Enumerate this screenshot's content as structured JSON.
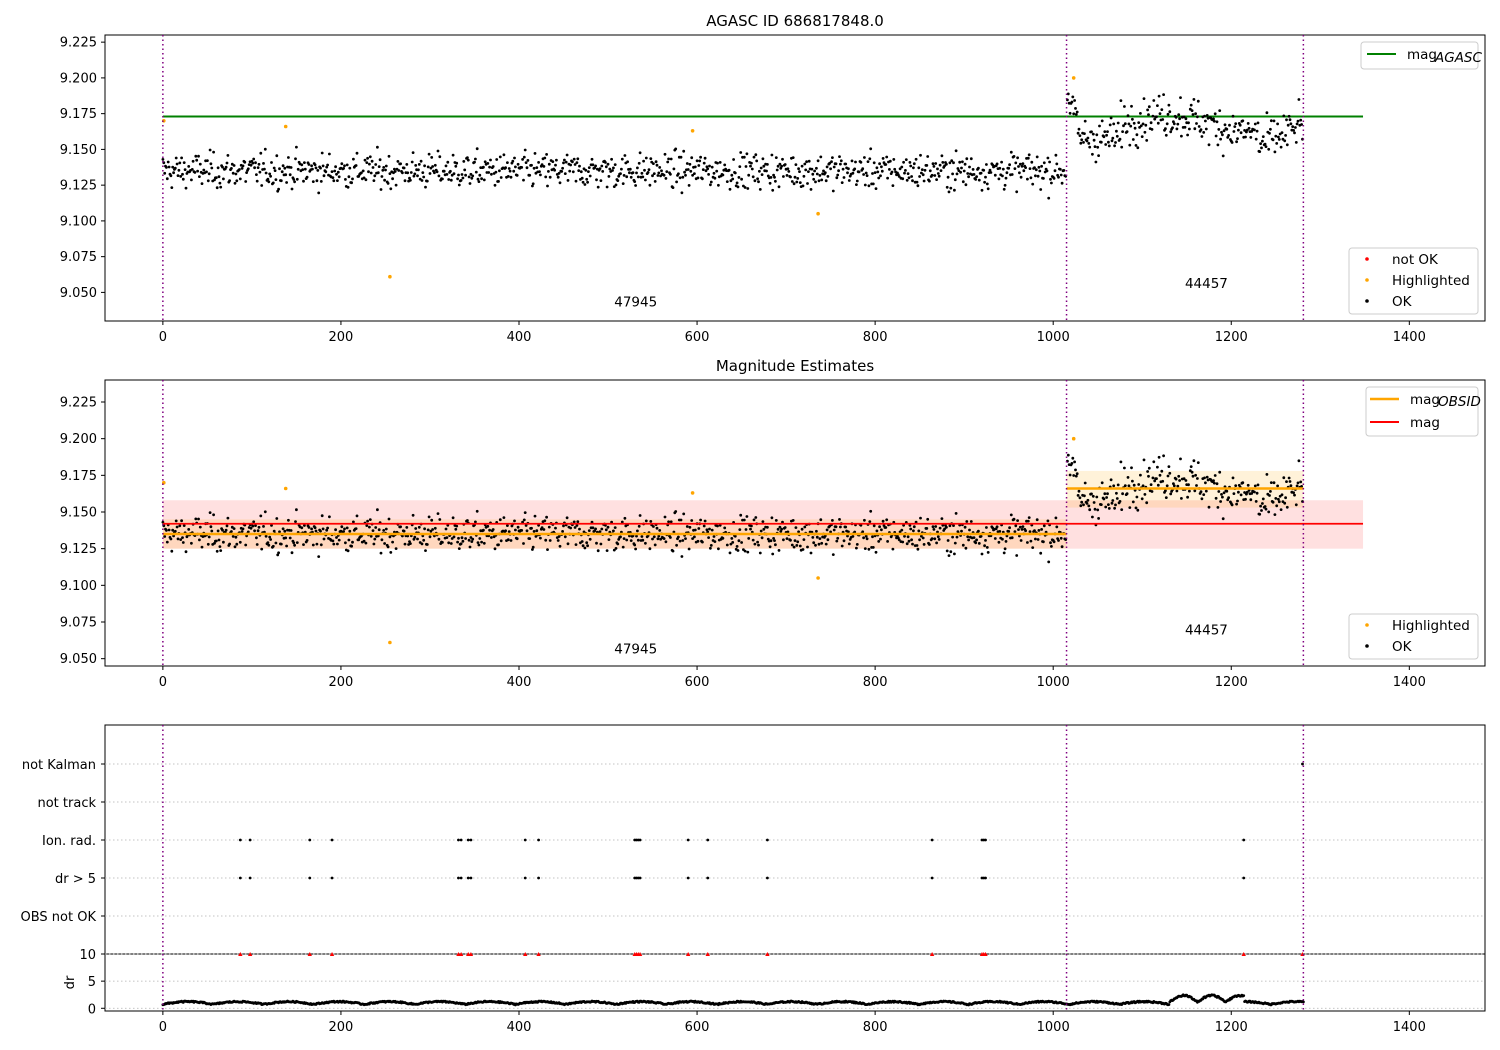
{
  "colors": {
    "ok": "#000000",
    "highlighted": "#ffa500",
    "not_ok": "#ff0000",
    "mag_agasc": "#008000",
    "mag_obsid": "#ffa500",
    "mag": "#ff0000",
    "obsid_sep": "#800080",
    "grid": "#b0b0b0"
  },
  "chart_data": [
    {
      "type": "scatter",
      "title": "AGASC ID 686817848.0",
      "xlim": [
        -65,
        1485
      ],
      "ylim": [
        9.03,
        9.23
      ],
      "xticks": [
        "0",
        "200",
        "400",
        "600",
        "800",
        "1000",
        "1200",
        "1400"
      ],
      "yticks": [
        "9.050",
        "9.075",
        "9.100",
        "9.125",
        "9.150",
        "9.175",
        "9.200",
        "9.225"
      ],
      "obsid_boundaries": [
        0,
        1015,
        1281
      ],
      "obsid_labels": [
        {
          "text": "47945",
          "x": 507,
          "y": 9.04
        },
        {
          "text": "44457",
          "x": 1148,
          "y": 9.053
        }
      ],
      "mag_agasc": {
        "value": 9.173,
        "x_range": [
          0,
          1348
        ]
      },
      "segments": [
        {
          "x_range": [
            0,
            1014
          ],
          "mean": 9.135,
          "std": 0.01
        },
        {
          "x_range": [
            1016,
            1280
          ],
          "mean": 9.166,
          "std": 0.012
        }
      ],
      "highlighted": [
        [
          1,
          9.17
        ],
        [
          138,
          9.166
        ],
        [
          255,
          9.061
        ],
        [
          595,
          9.163
        ],
        [
          736,
          9.105
        ],
        [
          1023,
          9.2
        ]
      ],
      "legend_top": [
        "mag_AGASC"
      ],
      "legend_bottom": [
        "not OK",
        "Highlighted",
        "OK"
      ],
      "legend_top_placement": "top-right",
      "legend_bottom_placement": "bottom-right",
      "grid": false
    },
    {
      "type": "scatter",
      "title": "Magnitude Estimates",
      "xlim": [
        -65,
        1485
      ],
      "ylim": [
        9.045,
        9.24
      ],
      "xticks": [
        "0",
        "200",
        "400",
        "600",
        "800",
        "1000",
        "1200",
        "1400"
      ],
      "yticks": [
        "9.050",
        "9.075",
        "9.100",
        "9.125",
        "9.150",
        "9.175",
        "9.200",
        "9.225"
      ],
      "obsid_boundaries": [
        0,
        1015,
        1281
      ],
      "obsid_labels": [
        {
          "text": "47945",
          "x": 507,
          "y": 9.0535
        },
        {
          "text": "44457",
          "x": 1148,
          "y": 9.0665
        }
      ],
      "mag_obsid": [
        {
          "value": 9.135,
          "x_range": [
            0,
            1015
          ],
          "band": [
            9.125,
            9.145
          ]
        },
        {
          "value": 9.166,
          "x_range": [
            1015,
            1281
          ],
          "band": [
            9.153,
            9.178
          ]
        }
      ],
      "mag": {
        "value": 9.142,
        "x_range": [
          0,
          1348
        ],
        "band": [
          9.125,
          9.158
        ]
      },
      "legend_top": [
        "mag_OBSID",
        "mag"
      ],
      "legend_bottom": [
        "Highlighted",
        "OK"
      ],
      "legend_top_placement": "top-right",
      "legend_bottom_placement": "bottom-right",
      "grid": false
    },
    {
      "type": "scatter",
      "xlim": [
        -65,
        1485
      ],
      "categories": [
        "OBS not OK",
        "dr > 5",
        "Ion. rad.",
        "not track",
        "not Kalman"
      ],
      "flag_x": [
        87,
        98,
        165,
        190,
        332,
        335,
        343,
        346,
        407,
        422,
        530,
        532,
        534,
        536,
        590,
        612,
        679,
        864,
        920,
        922,
        924,
        1214
      ],
      "not_kalman_x": [
        1280
      ],
      "dr_flagged_x": [
        87,
        98,
        165,
        190,
        332,
        335,
        343,
        346,
        407,
        422,
        530,
        532,
        534,
        536,
        590,
        612,
        679,
        864,
        920,
        922,
        924,
        1214,
        1280
      ],
      "grid": true
    },
    {
      "type": "line",
      "xlim": [
        -65,
        1485
      ],
      "ylim": [
        -0.5,
        10
      ],
      "ylabel": "dr",
      "yticks": [
        "0",
        "5",
        "10"
      ],
      "xticks": [
        "0",
        "200",
        "400",
        "600",
        "800",
        "1000",
        "1200",
        "1400"
      ],
      "dr_clip": 10,
      "grid": true
    }
  ],
  "legend_labels": {
    "mag_agasc_base": "mag",
    "mag_agasc_sub": "AGASC",
    "mag_obsid_base": "mag",
    "mag_obsid_sub": "OBSID",
    "mag": "mag",
    "not_ok": "not OK",
    "highlighted": "Highlighted",
    "ok": "OK"
  },
  "flag_labels": [
    "not Kalman",
    "not track",
    "Ion. rad.",
    "dr > 5",
    "OBS not OK"
  ],
  "dr_ticks": [
    "10",
    "5",
    "0"
  ],
  "dr_label": "dr"
}
